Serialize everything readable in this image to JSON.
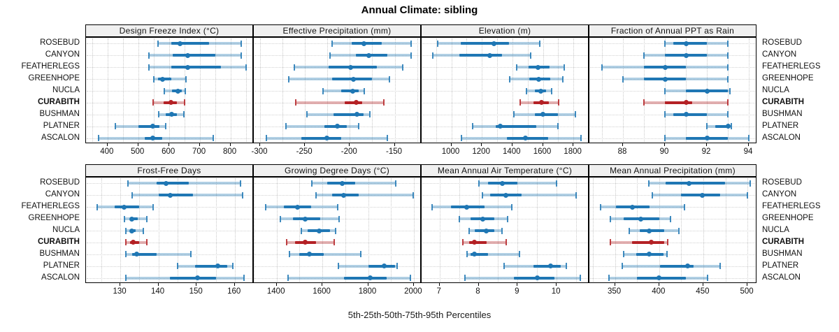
{
  "title": "Annual Climate: sibling",
  "footer": "5th-25th-50th-75th-95th Percentiles",
  "colors": {
    "blue": "#1F77B4",
    "red": "#B42125",
    "grid": "#C9C9C9",
    "header_bg": "#F0F0F0",
    "border": "#000000"
  },
  "chart_data": {
    "type": "dot-whisker",
    "percentiles": [
      "5th",
      "25th",
      "50th",
      "75th",
      "95th"
    ],
    "sites": [
      "ROSEBUD",
      "CANYON",
      "FEATHERLEGS",
      "GREENHOPE",
      "NUCLA",
      "CURABITH",
      "BUSHMAN",
      "PLATNER",
      "ASCALON"
    ],
    "highlight_site": "CURABITH",
    "layout": {
      "rows": 2,
      "cols": 4,
      "grid": "dotted",
      "site_labels": "both-sides",
      "legend": "none"
    },
    "panels": [
      {
        "title": "Design Freeze Index (°C)",
        "xlim": [
          330,
          876
        ],
        "ticks": [
          400,
          500,
          600,
          700,
          800
        ],
        "grid_step": 50,
        "values": [
          [
            565,
            608,
            635,
            730,
            835
          ],
          [
            535,
            612,
            662,
            750,
            835
          ],
          [
            535,
            608,
            660,
            770,
            850
          ],
          [
            550,
            565,
            578,
            608,
            655
          ],
          [
            585,
            610,
            628,
            642,
            652
          ],
          [
            548,
            583,
            607,
            625,
            650
          ],
          [
            566,
            590,
            608,
            626,
            648
          ],
          [
            425,
            500,
            548,
            570,
            590
          ],
          [
            370,
            520,
            548,
            578,
            745
          ]
        ]
      },
      {
        "title": "Effective Precipitation (mm)",
        "xlim": [
          -307,
          -120
        ],
        "ticks": [
          -300,
          -250,
          -200,
          -150
        ],
        "grid_step": 25,
        "values": [
          [
            -220,
            -198,
            -184,
            -164,
            -132
          ],
          [
            -222,
            -193,
            -179,
            -158,
            -132
          ],
          [
            -262,
            -224,
            -199,
            -170,
            -141
          ],
          [
            -268,
            -220,
            -196,
            -175,
            -156
          ],
          [
            -230,
            -210,
            -197,
            -190,
            -184
          ],
          [
            -260,
            -206,
            -193,
            -186,
            -162
          ],
          [
            -248,
            -218,
            -192,
            -185,
            -178
          ],
          [
            -271,
            -228,
            -214,
            -203,
            -190
          ],
          [
            -293,
            -254,
            -226,
            -210,
            -158
          ]
        ]
      },
      {
        "title": "Elevation (m)",
        "xlim": [
          805,
          1905
        ],
        "ticks": [
          1000,
          1200,
          1400,
          1600,
          1800
        ],
        "grid_step": 100,
        "values": [
          [
            910,
            1060,
            1278,
            1380,
            1580
          ],
          [
            880,
            1050,
            1252,
            1330,
            1520
          ],
          [
            1428,
            1508,
            1566,
            1645,
            1738
          ],
          [
            1382,
            1510,
            1574,
            1650,
            1730
          ],
          [
            1490,
            1545,
            1585,
            1620,
            1658
          ],
          [
            1450,
            1540,
            1592,
            1640,
            1705
          ],
          [
            1412,
            1545,
            1600,
            1700,
            1815
          ],
          [
            1140,
            1290,
            1322,
            1555,
            1700
          ],
          [
            1065,
            1365,
            1486,
            1635,
            1850
          ]
        ]
      },
      {
        "title": "Fraction of Annual PPT as Rain",
        "xlim": [
          86.4,
          94.4
        ],
        "ticks": [
          88,
          90,
          92,
          94
        ],
        "grid_step": 1,
        "values": [
          [
            90,
            90.4,
            91,
            92,
            93
          ],
          [
            89,
            90,
            91,
            92,
            93
          ],
          [
            87,
            89,
            90,
            91,
            93
          ],
          [
            88,
            89,
            90,
            91,
            93
          ],
          [
            90,
            91,
            92,
            93,
            93.1
          ],
          [
            89,
            90,
            91,
            91.3,
            93
          ],
          [
            90,
            90.4,
            91,
            92,
            93
          ],
          [
            92,
            92.4,
            93,
            93.05,
            93.15
          ],
          [
            90,
            91,
            92,
            93,
            94
          ]
        ]
      },
      {
        "title": "Frost-Free Days",
        "xlim": [
          121,
          165
        ],
        "ticks": [
          130,
          140,
          150,
          160
        ],
        "grid_step": 5,
        "values": [
          [
            132,
            139.5,
            142,
            148,
            161.5
          ],
          [
            133,
            140,
            143,
            149,
            162
          ],
          [
            124,
            128.5,
            131,
            135,
            138.5
          ],
          [
            131,
            132.5,
            133,
            134.5,
            137
          ],
          [
            131.5,
            132.5,
            133,
            134,
            136
          ],
          [
            131.5,
            132.5,
            133.3,
            135,
            137
          ],
          [
            131.5,
            133,
            134.2,
            139.5,
            148.5
          ],
          [
            145,
            149.5,
            155.5,
            158,
            159.5
          ],
          [
            131.5,
            143,
            150.3,
            155,
            162.5
          ]
        ]
      },
      {
        "title": "Growing Degree Days (°C)",
        "xlim": [
          1300,
          2034
        ],
        "ticks": [
          1400,
          1600,
          1800,
          2000
        ],
        "grid_step": 100,
        "values": [
          [
            1555,
            1620,
            1687,
            1745,
            1922
          ],
          [
            1572,
            1643,
            1692,
            1760,
            1998
          ],
          [
            1352,
            1432,
            1492,
            1550,
            1666
          ],
          [
            1415,
            1470,
            1524,
            1590,
            1673
          ],
          [
            1509,
            1536,
            1585,
            1633,
            1658
          ],
          [
            1445,
            1480,
            1525,
            1572,
            1653
          ],
          [
            1455,
            1500,
            1544,
            1607,
            1768
          ],
          [
            1671,
            1800,
            1869,
            1917,
            1928
          ],
          [
            1450,
            1694,
            1808,
            1880,
            1986
          ]
        ]
      },
      {
        "title": "Mean Annual Air Temperature (°C)",
        "xlim": [
          6.54,
          10.84
        ],
        "ticks": [
          7,
          8,
          9,
          10
        ],
        "grid_step": 0.5,
        "values": [
          [
            8.0,
            8.25,
            8.6,
            9.0,
            10.0
          ],
          [
            8.1,
            8.3,
            8.7,
            9.1,
            10.5
          ],
          [
            6.8,
            7.3,
            7.7,
            8.15,
            8.85
          ],
          [
            7.5,
            7.8,
            8.1,
            8.4,
            8.75
          ],
          [
            7.75,
            7.9,
            8.2,
            8.4,
            8.6
          ],
          [
            7.6,
            7.75,
            7.9,
            8.2,
            8.7
          ],
          [
            7.7,
            7.8,
            7.9,
            8.25,
            9.05
          ],
          [
            8.65,
            9.4,
            9.85,
            10.1,
            10.25
          ],
          [
            7.65,
            8.9,
            9.5,
            9.95,
            10.6
          ]
        ]
      },
      {
        "title": "Mean Annual Precipitation (mm)",
        "xlim": [
          321,
          511
        ],
        "ticks": [
          350,
          400,
          450,
          500
        ],
        "grid_step": 25,
        "values": [
          [
            388,
            407,
            434,
            475,
            503
          ],
          [
            392,
            425,
            449,
            469,
            500
          ],
          [
            334,
            351,
            370,
            389,
            429
          ],
          [
            345,
            360,
            379,
            400,
            413
          ],
          [
            366,
            378,
            389,
            406,
            422
          ],
          [
            345,
            369,
            391,
            406,
            410
          ],
          [
            360,
            374,
            389,
            405,
            409
          ],
          [
            358,
            401,
            432,
            439,
            469
          ],
          [
            343,
            375,
            400,
            430,
            455
          ]
        ]
      }
    ]
  }
}
